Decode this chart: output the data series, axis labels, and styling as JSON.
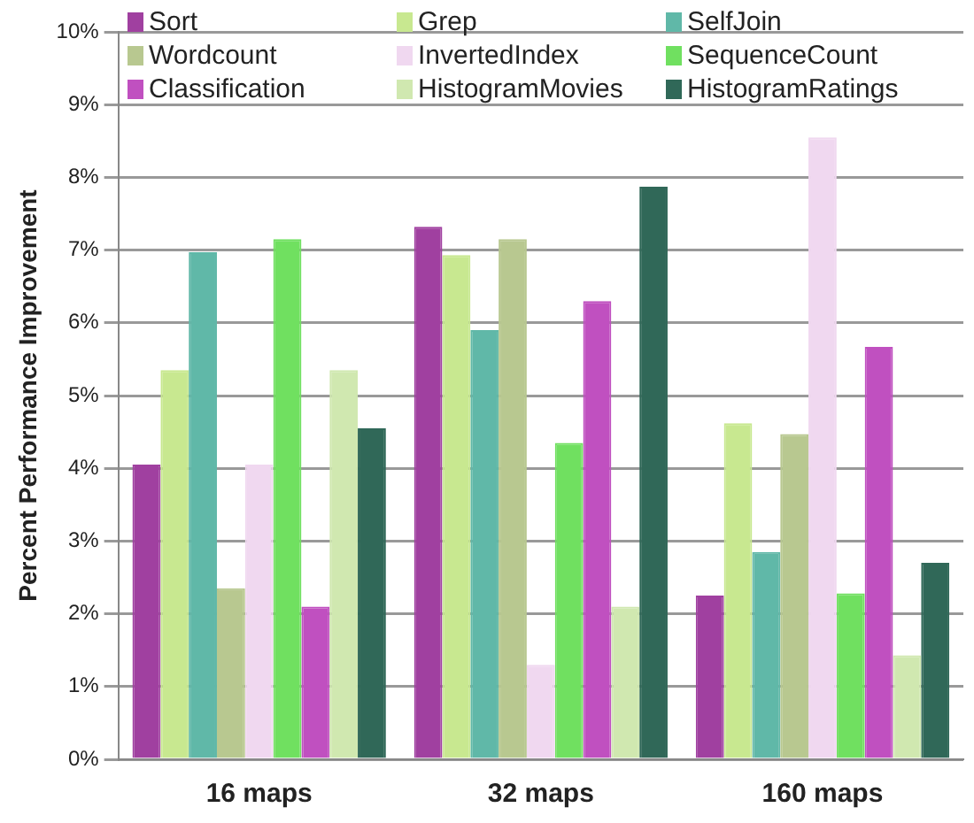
{
  "chart_data": {
    "type": "bar",
    "ylabel": "Percent Performance Improvement",
    "categories": [
      "16 maps",
      "32 maps",
      "160 maps"
    ],
    "series": [
      {
        "name": "Sort",
        "color": "#a040a0",
        "values": [
          4.05,
          7.32,
          2.25
        ]
      },
      {
        "name": "Grep",
        "color": "#c8e890",
        "values": [
          5.35,
          6.93,
          4.62
        ]
      },
      {
        "name": "SelfJoin",
        "color": "#60b8a8",
        "values": [
          6.97,
          5.9,
          2.85
        ]
      },
      {
        "name": "Wordcount",
        "color": "#b8c890",
        "values": [
          2.35,
          7.15,
          4.47
        ]
      },
      {
        "name": "InvertedIndex",
        "color": "#f0d8f0",
        "values": [
          4.05,
          1.3,
          8.55
        ]
      },
      {
        "name": "SequenceCount",
        "color": "#70e060",
        "values": [
          7.15,
          4.35,
          2.28
        ]
      },
      {
        "name": "Classification",
        "color": "#c050c0",
        "values": [
          2.1,
          6.3,
          5.67
        ]
      },
      {
        "name": "HistogramMovies",
        "color": "#d0e8b0",
        "values": [
          5.35,
          2.1,
          1.43
        ]
      },
      {
        "name": "HistogramRatings",
        "color": "#306858",
        "values": [
          4.55,
          7.87,
          2.7
        ]
      }
    ],
    "ylim": [
      0,
      10
    ],
    "yticks": [
      {
        "value": 0,
        "label": "0%"
      },
      {
        "value": 1,
        "label": "1%"
      },
      {
        "value": 2,
        "label": "2%"
      },
      {
        "value": 3,
        "label": "3%"
      },
      {
        "value": 4,
        "label": "4%"
      },
      {
        "value": 5,
        "label": "5%"
      },
      {
        "value": 6,
        "label": "6%"
      },
      {
        "value": 7,
        "label": "7%"
      },
      {
        "value": 8,
        "label": "8%"
      },
      {
        "value": 9,
        "label": "9%"
      },
      {
        "value": 10,
        "label": "10%"
      }
    ],
    "grid": "y",
    "legend": "top"
  }
}
